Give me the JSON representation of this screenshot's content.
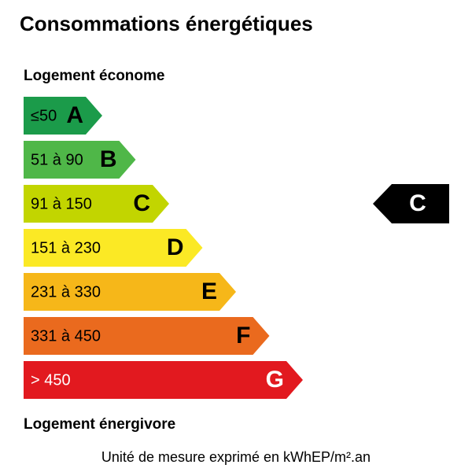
{
  "title": "Consommations énergétiques",
  "top_label": "Logement économe",
  "bottom_label": "Logement énergivore",
  "unit_note": "Unité de mesure exprimé en kWhEP/m².an",
  "bands": [
    {
      "range": "≤50",
      "letter": "A",
      "color": "#1b9b4a",
      "text_color": "#000000"
    },
    {
      "range": "51 à 90",
      "letter": "B",
      "color": "#4fb748",
      "text_color": "#000000"
    },
    {
      "range": "91 à 150",
      "letter": "C",
      "color": "#c2d500",
      "text_color": "#000000"
    },
    {
      "range": "151 à 230",
      "letter": "D",
      "color": "#fbe925",
      "text_color": "#000000"
    },
    {
      "range": "231 à 330",
      "letter": "E",
      "color": "#f6b719",
      "text_color": "#000000"
    },
    {
      "range": "331 à 450",
      "letter": "F",
      "color": "#ea6a1e",
      "text_color": "#000000"
    },
    {
      "range": "> 450",
      "letter": "G",
      "color": "#e2191f",
      "text_color": "#ffffff"
    }
  ],
  "rating": {
    "letter": "C",
    "color": "#000000",
    "text_color": "#ffffff"
  }
}
